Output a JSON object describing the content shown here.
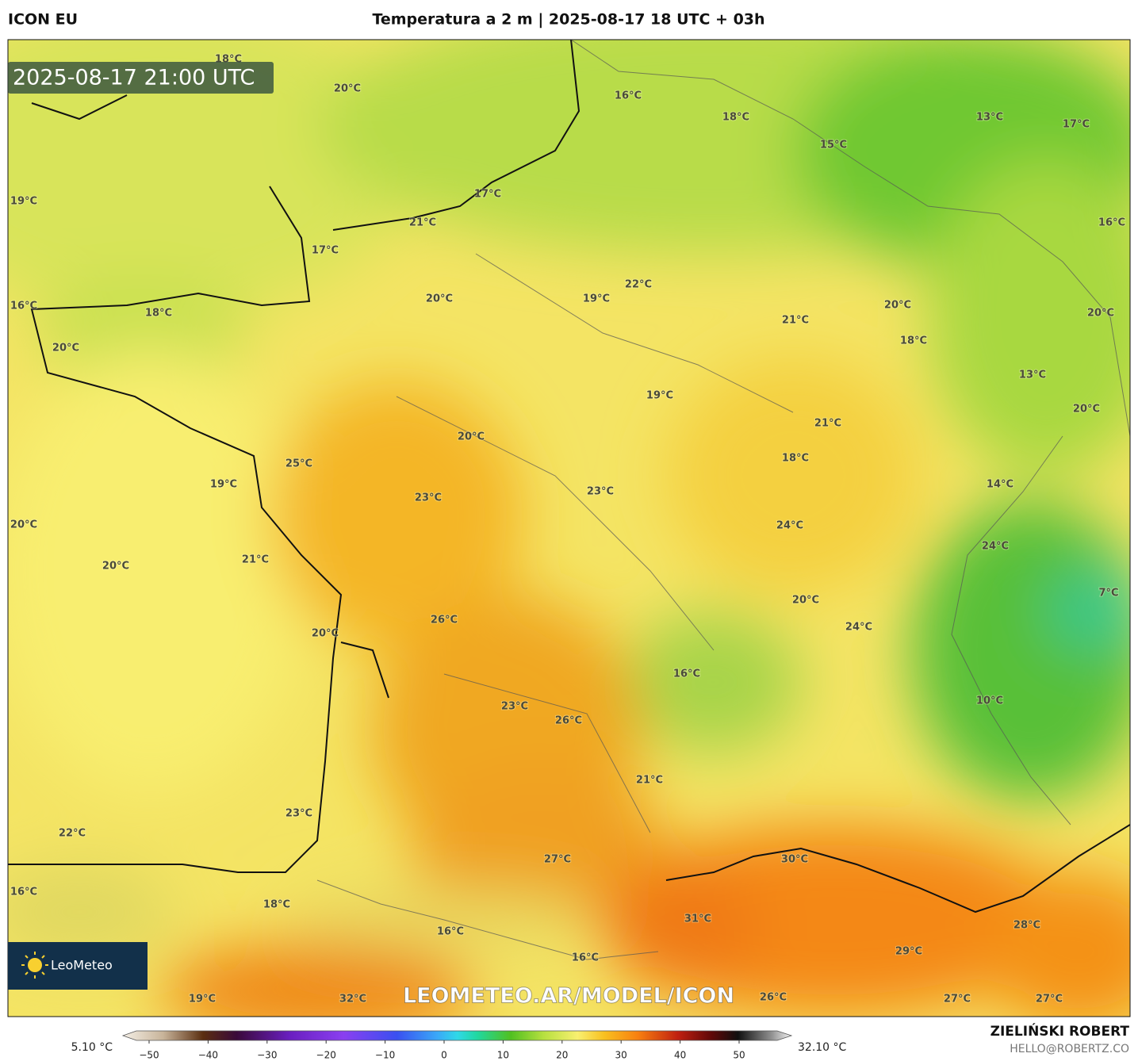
{
  "header": {
    "model": "ICON EU",
    "title": "Temperatura a 2 m | 2025-08-17 18 UTC + 03h"
  },
  "timestamp": "2025-08-17 21:00 UTC",
  "map_labels": [
    "18°C",
    "20°C",
    "16°C",
    "18°C",
    "13°C",
    "17°C",
    "15°C",
    "19°C",
    "17°C",
    "21°C",
    "16°C",
    "17°C",
    "22°C",
    "19°C",
    "20°C",
    "16°C",
    "18°C",
    "20°C",
    "20°C",
    "21°C",
    "20°C",
    "18°C",
    "13°C",
    "19°C",
    "20°C",
    "21°C",
    "20°C",
    "18°C",
    "25°C",
    "19°C",
    "14°C",
    "23°C",
    "23°C",
    "20°C",
    "24°C",
    "24°C",
    "21°C",
    "20°C",
    "7°C",
    "20°C",
    "26°C",
    "24°C",
    "20°C",
    "16°C",
    "10°C",
    "23°C",
    "26°C",
    "21°C",
    "23°C",
    "22°C",
    "27°C",
    "30°C",
    "16°C",
    "18°C",
    "31°C",
    "28°C",
    "16°C",
    "29°C",
    "16°C",
    "19°C",
    "32°C",
    "26°C",
    "27°C",
    "27°C"
  ],
  "watermark": "LEOMETEO.AR/MODEL/ICON",
  "logo": "LeoMeteo",
  "legend": {
    "min_label": "5.10 °C",
    "max_label": "32.10 °C",
    "ticks": [
      {
        "value": -50,
        "label": "−50"
      },
      {
        "value": -40,
        "label": "−40"
      },
      {
        "value": -30,
        "label": "−30"
      },
      {
        "value": -20,
        "label": "−20"
      },
      {
        "value": -10,
        "label": "−10"
      },
      0,
      10,
      20,
      30,
      40,
      50
    ]
  },
  "credit": {
    "name": "ZIELIŃSKI ROBERT",
    "email": "HELLO@ROBERTZ.CO"
  }
}
